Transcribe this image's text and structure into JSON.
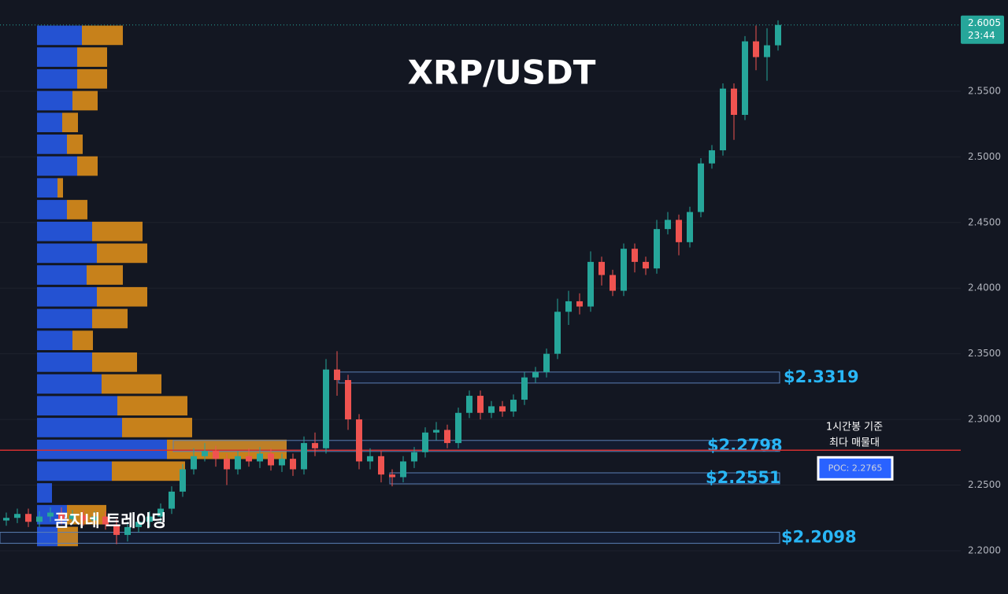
{
  "chart_data": {
    "type": "candlestick",
    "title": "XRP/USDT",
    "watermark": "곰지네 트레이딩",
    "annotation": [
      "1시간봉 기준",
      "최다 매물대"
    ],
    "poc": {
      "value": 2.2765,
      "label": "POC: 2.2765"
    },
    "last_price": 2.6005,
    "countdown": "23:44",
    "up_color": "#26a69a",
    "down_color": "#ef5350",
    "poc_color": "#d32f2f",
    "grid": true,
    "ylim": [
      2.167,
      2.6195
    ],
    "yticks": [
      {
        "value": 2.2,
        "label": "2.2000"
      },
      {
        "value": 2.25,
        "label": "2.2500"
      },
      {
        "value": 2.3,
        "label": "2.3000"
      },
      {
        "value": 2.35,
        "label": "2.3500"
      },
      {
        "value": 2.4,
        "label": "2.4000"
      },
      {
        "value": 2.45,
        "label": "2.4500"
      },
      {
        "value": 2.5,
        "label": "2.5000"
      },
      {
        "value": 2.55,
        "label": "2.5500"
      }
    ],
    "levels": [
      {
        "value": 2.3319,
        "label": "$2.3319"
      },
      {
        "value": 2.2798,
        "label": "$2.2798"
      },
      {
        "value": 2.2551,
        "label": "$2.2551"
      },
      {
        "value": 2.2098,
        "label": "$2.2098"
      }
    ],
    "profile": {
      "buy_color": "#2962ff",
      "sell_color": "#f59c1a",
      "bins": [
        2.6,
        2.5834,
        2.5668,
        2.5502,
        2.5336,
        2.517,
        2.5004,
        2.4838,
        2.4672,
        2.4506,
        2.434,
        2.4174,
        2.4008,
        2.3842,
        2.3676,
        2.351,
        2.3344,
        2.3178,
        2.3012,
        2.2846,
        2.268,
        2.2514,
        2.2348,
        2.2182,
        2.2016
      ],
      "buy": [
        57,
        51,
        51,
        45,
        32,
        38,
        51,
        26,
        38,
        70,
        76,
        63,
        76,
        70,
        45,
        70,
        82,
        102,
        108,
        165,
        95,
        19,
        38,
        26
      ],
      "sell": [
        52,
        38,
        38,
        32,
        20,
        20,
        26,
        7,
        26,
        64,
        64,
        46,
        64,
        45,
        26,
        57,
        76,
        89,
        89,
        152,
        93,
        0,
        50,
        26
      ]
    },
    "open": [
      2.223,
      2.225,
      2.228,
      2.222,
      2.226,
      2.229,
      2.224,
      2.227,
      2.223,
      2.226,
      2.22,
      2.212,
      2.218,
      2.222,
      2.226,
      2.232,
      2.245,
      2.262,
      2.272,
      2.276,
      2.27,
      2.262,
      2.272,
      2.268,
      2.274,
      2.265,
      2.27,
      2.262,
      2.282,
      2.278,
      2.338,
      2.33,
      2.3,
      2.268,
      2.272,
      2.258,
      2.256,
      2.268,
      2.275,
      2.29,
      2.292,
      2.282,
      2.305,
      2.318,
      2.305,
      2.31,
      2.306,
      2.315,
      2.332,
      2.336,
      2.35,
      2.382,
      2.39,
      2.386,
      2.42,
      2.41,
      2.398,
      2.43,
      2.42,
      2.415,
      2.445,
      2.452,
      2.435,
      2.458,
      2.495,
      2.505,
      2.552,
      2.532,
      2.588,
      2.576,
      2.585
    ],
    "high": [
      2.229,
      2.232,
      2.232,
      2.23,
      2.233,
      2.233,
      2.231,
      2.231,
      2.23,
      2.23,
      2.224,
      2.222,
      2.226,
      2.23,
      2.236,
      2.249,
      2.266,
      2.278,
      2.282,
      2.28,
      2.274,
      2.276,
      2.278,
      2.279,
      2.278,
      2.274,
      2.274,
      2.287,
      2.29,
      2.346,
      2.352,
      2.334,
      2.304,
      2.278,
      2.276,
      2.262,
      2.272,
      2.279,
      2.294,
      2.298,
      2.296,
      2.309,
      2.322,
      2.322,
      2.314,
      2.314,
      2.319,
      2.336,
      2.34,
      2.354,
      2.392,
      2.398,
      2.396,
      2.428,
      2.424,
      2.414,
      2.434,
      2.434,
      2.424,
      2.452,
      2.458,
      2.456,
      2.462,
      2.499,
      2.509,
      2.556,
      2.556,
      2.592,
      2.6,
      2.598,
      2.604
    ],
    "low": [
      2.219,
      2.221,
      2.218,
      2.218,
      2.222,
      2.22,
      2.22,
      2.219,
      2.219,
      2.216,
      2.205,
      2.207,
      2.214,
      2.218,
      2.222,
      2.228,
      2.241,
      2.258,
      2.268,
      2.264,
      2.25,
      2.258,
      2.264,
      2.263,
      2.261,
      2.26,
      2.257,
      2.258,
      2.272,
      2.274,
      2.318,
      2.292,
      2.262,
      2.262,
      2.252,
      2.249,
      2.252,
      2.263,
      2.271,
      2.284,
      2.278,
      2.278,
      2.301,
      2.3,
      2.301,
      2.302,
      2.302,
      2.311,
      2.328,
      2.332,
      2.346,
      2.372,
      2.38,
      2.382,
      2.402,
      2.394,
      2.394,
      2.412,
      2.41,
      2.411,
      2.441,
      2.425,
      2.431,
      2.454,
      2.491,
      2.501,
      2.513,
      2.528,
      2.566,
      2.558,
      2.581
    ],
    "close": [
      2.225,
      2.228,
      2.222,
      2.226,
      2.229,
      2.224,
      2.227,
      2.223,
      2.226,
      2.22,
      2.212,
      2.218,
      2.222,
      2.226,
      2.232,
      2.245,
      2.262,
      2.272,
      2.276,
      2.27,
      2.262,
      2.272,
      2.268,
      2.274,
      2.265,
      2.27,
      2.262,
      2.282,
      2.278,
      2.338,
      2.33,
      2.3,
      2.268,
      2.272,
      2.258,
      2.256,
      2.268,
      2.275,
      2.29,
      2.292,
      2.282,
      2.305,
      2.318,
      2.305,
      2.31,
      2.306,
      2.315,
      2.332,
      2.336,
      2.35,
      2.382,
      2.39,
      2.386,
      2.42,
      2.41,
      2.398,
      2.43,
      2.42,
      2.415,
      2.445,
      2.452,
      2.435,
      2.458,
      2.495,
      2.505,
      2.552,
      2.532,
      2.588,
      2.576,
      2.585,
      2.6005
    ]
  }
}
